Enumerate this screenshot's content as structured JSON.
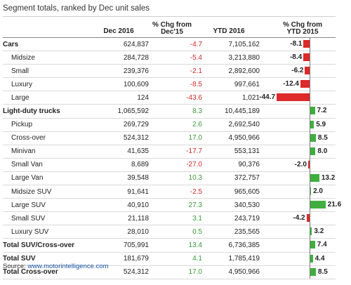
{
  "title": "Segment totals, ranked by Dec unit sales",
  "headers": {
    "dec": "Dec 2016",
    "chg_line1": "% Chg from",
    "chg_line2": "Dec'15",
    "ytd": "YTD 2016",
    "ytdchg_line1": "% Chg from",
    "ytdchg_line2": "YTD 2015"
  },
  "colors": {
    "positive": "#3a9a3a",
    "negative": "#d42b2b",
    "bar_pos": "#3fae3f",
    "bar_neg": "#dd2a2a"
  },
  "source_label": "Source:",
  "source_link": "www.motorintelligence.com",
  "chart_data": {
    "type": "table",
    "title": "Segment totals, ranked by Dec unit sales",
    "columns": [
      "Dec 2016",
      "% Chg from Dec'15",
      "YTD 2016",
      "% Chg from YTD 2015"
    ],
    "bar_column": "% Chg from YTD 2015",
    "bar_range": [
      -44.7,
      21.6
    ],
    "rows": [
      {
        "name": "Cars",
        "dec": "624,837",
        "chg": "-4.7",
        "ytd": "7,105,162",
        "ytdchg": -8.1,
        "ytdchg_label": "-8.1",
        "bold": true,
        "sub": false
      },
      {
        "name": "Midsize",
        "dec": "284,728",
        "chg": "-5.4",
        "ytd": "3,213,880",
        "ytdchg": -8.4,
        "ytdchg_label": "-8.4",
        "bold": false,
        "sub": true
      },
      {
        "name": "Small",
        "dec": "239,376",
        "chg": "-2.1",
        "ytd": "2,892,600",
        "ytdchg": -6.2,
        "ytdchg_label": "-6.2",
        "bold": false,
        "sub": true
      },
      {
        "name": "Luxury",
        "dec": "100,609",
        "chg": "-8.5",
        "ytd": "997,661",
        "ytdchg": -12.4,
        "ytdchg_label": "-12.4",
        "bold": false,
        "sub": true
      },
      {
        "name": "Large",
        "dec": "124",
        "chg": "-43.6",
        "ytd": "1,021",
        "ytdchg": -44.7,
        "ytdchg_label": "-44.7",
        "bold": false,
        "sub": true
      },
      {
        "name": "Light-duty trucks",
        "dec": "1,065,592",
        "chg": "8.3",
        "ytd": "10,445,189",
        "ytdchg": 7.2,
        "ytdchg_label": "7.2",
        "bold": true,
        "sub": false
      },
      {
        "name": "Pickup",
        "dec": "269,729",
        "chg": "2.6",
        "ytd": "2,692,540",
        "ytdchg": 5.9,
        "ytdchg_label": "5.9",
        "bold": false,
        "sub": true
      },
      {
        "name": "Cross-over",
        "dec": "524,312",
        "chg": "17.0",
        "ytd": "4,950,966",
        "ytdchg": 8.5,
        "ytdchg_label": "8.5",
        "bold": false,
        "sub": true
      },
      {
        "name": "Minivan",
        "dec": "41,635",
        "chg": "-17.7",
        "ytd": "553,131",
        "ytdchg": 8.0,
        "ytdchg_label": "8.0",
        "bold": false,
        "sub": true
      },
      {
        "name": "Small Van",
        "dec": "8,689",
        "chg": "-27.0",
        "ytd": "90,376",
        "ytdchg": -2.0,
        "ytdchg_label": "-2.0",
        "bold": false,
        "sub": true
      },
      {
        "name": "Large Van",
        "dec": "39,548",
        "chg": "10.3",
        "ytd": "372,757",
        "ytdchg": 13.2,
        "ytdchg_label": "13.2",
        "bold": false,
        "sub": true
      },
      {
        "name": "Midsize SUV",
        "dec": "91,641",
        "chg": "-2.5",
        "ytd": "965,605",
        "ytdchg": 2.0,
        "ytdchg_label": "2.0",
        "bold": false,
        "sub": true
      },
      {
        "name": "Large SUV",
        "dec": "40,910",
        "chg": "27.3",
        "ytd": "340,530",
        "ytdchg": 21.6,
        "ytdchg_label": "21.6",
        "bold": false,
        "sub": true
      },
      {
        "name": "Small SUV",
        "dec": "21,118",
        "chg": "3.1",
        "ytd": "243,719",
        "ytdchg": -4.2,
        "ytdchg_label": "-4.2",
        "bold": false,
        "sub": true
      },
      {
        "name": "Luxury SUV",
        "dec": "28,010",
        "chg": "0.5",
        "ytd": "235,565",
        "ytdchg": 3.2,
        "ytdchg_label": "3.2",
        "bold": false,
        "sub": true
      },
      {
        "name": "Total SUV/Cross-over",
        "dec": "705,991",
        "chg": "13.4",
        "ytd": "6,736,385",
        "ytdchg": 7.4,
        "ytdchg_label": "7.4",
        "bold": true,
        "sub": false
      },
      {
        "name": "Total SUV",
        "dec": "181,679",
        "chg": "4.1",
        "ytd": "1,785,419",
        "ytdchg": 4.4,
        "ytdchg_label": "4.4",
        "bold": true,
        "sub": false
      },
      {
        "name": "Total Cross-over",
        "dec": "524,312",
        "chg": "17.0",
        "ytd": "4,950,966",
        "ytdchg": 8.5,
        "ytdchg_label": "8.5",
        "bold": true,
        "sub": false
      }
    ]
  }
}
